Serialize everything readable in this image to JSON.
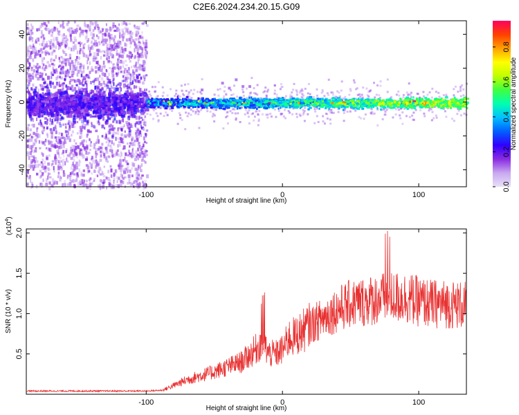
{
  "title": "C2E6.2024.234.20.15.G09",
  "chart_data": [
    {
      "type": "heatmap",
      "xlabel": "Height of straight line (km)",
      "ylabel": "Frequency (Hz)",
      "xlim": [
        -188,
        135
      ],
      "ylim": [
        -50,
        48
      ],
      "xticks": [
        -100,
        0,
        100
      ],
      "yticks": [
        40,
        20,
        0,
        -20,
        -40
      ],
      "colorbar": {
        "label": "Normalized spectral amplitude",
        "range": [
          0,
          0.95
        ],
        "ticks": [
          0,
          0.2,
          0.4,
          0.6,
          0.8
        ],
        "colors": [
          "#e8e0f8",
          "#c8a8f0",
          "#8a2be2",
          "#3000ff",
          "#0060ff",
          "#00c0ff",
          "#00ffb0",
          "#40ff40",
          "#c0ff00",
          "#ffff00",
          "#ffa000",
          "#ff4000",
          "#ff0060"
        ]
      },
      "description_values": {
        "band_center_hz": 0,
        "band_halfwidth_hz": 4,
        "noisy_region_xmax": -100
      }
    },
    {
      "type": "line",
      "xlabel": "Height of straight line (km)",
      "ylabel": "SNR (10 * v/v)",
      "exponent_label": "(x10",
      "exponent_value": "4",
      "xlim": [
        -188,
        135
      ],
      "ylim": [
        0,
        2.05
      ],
      "xticks": [
        -100,
        0,
        100
      ],
      "yticks": [
        0.5,
        1.0,
        1.5,
        2.0
      ],
      "ytick_labels": [
        "0.5",
        "1.0",
        "1.5",
        "2.0"
      ],
      "series": [
        {
          "color": "#e83030",
          "x": [
            -188,
            -150,
            -100,
            -88,
            -70,
            -50,
            -30,
            -20,
            -15,
            -13,
            -10,
            -5,
            0,
            5,
            10,
            20,
            30,
            40,
            50,
            60,
            70,
            80,
            90,
            100,
            110,
            120,
            135
          ],
          "y": [
            0.04,
            0.04,
            0.04,
            0.05,
            0.18,
            0.28,
            0.4,
            0.55,
            0.65,
            0.6,
            0.5,
            0.5,
            0.55,
            0.7,
            0.72,
            0.85,
            0.95,
            1.05,
            1.12,
            1.15,
            1.18,
            1.2,
            1.2,
            1.15,
            1.12,
            1.12,
            1.1
          ]
        }
      ]
    }
  ]
}
